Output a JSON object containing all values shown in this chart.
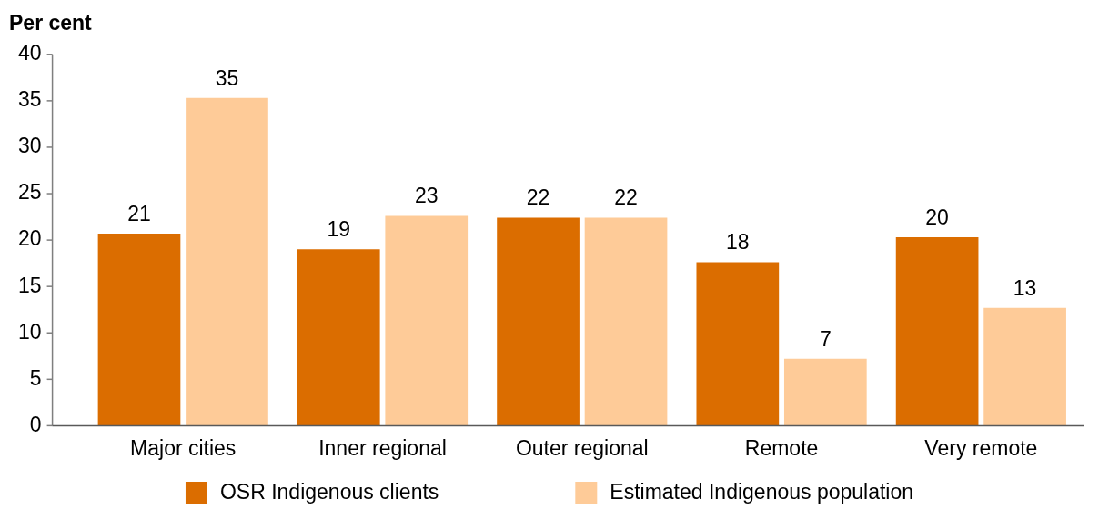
{
  "chart_data": {
    "type": "bar",
    "ylabel": "Per cent",
    "categories": [
      "Major cities",
      "Inner regional",
      "Outer regional",
      "Remote",
      "Very remote"
    ],
    "series": [
      {
        "name": "OSR Indigenous clients",
        "color": "#db6d00",
        "values": [
          20.7,
          19.0,
          22.4,
          17.6,
          20.3
        ],
        "value_labels": [
          "21",
          "19",
          "22",
          "18",
          "20"
        ]
      },
      {
        "name": "Estimated Indigenous population",
        "color": "#fecb98",
        "values": [
          35.3,
          22.6,
          22.4,
          7.2,
          12.7
        ],
        "value_labels": [
          "35",
          "23",
          "22",
          "7",
          "13"
        ]
      }
    ],
    "ylim": [
      0,
      40
    ],
    "yticks": [
      0,
      5,
      10,
      15,
      20,
      25,
      30,
      35,
      40
    ],
    "grid": false,
    "legend": "bottom"
  }
}
